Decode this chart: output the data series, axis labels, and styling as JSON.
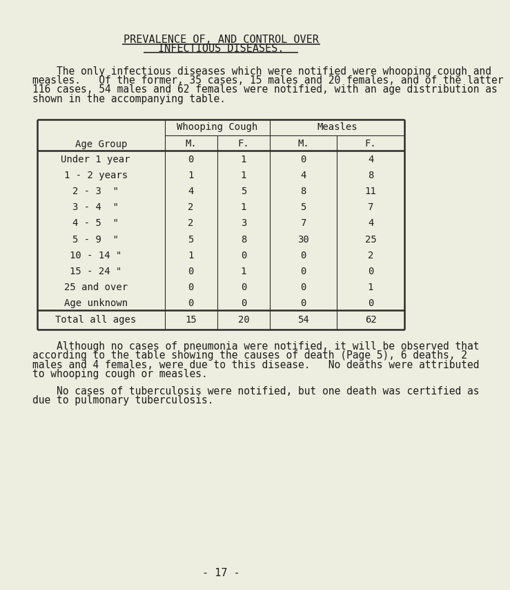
{
  "bg_color": "#eeeee0",
  "title_line1": "PREVALENCE OF, AND CONTROL OVER",
  "title_line2": "INFECTIOUS DISEASES.",
  "para1_indent": "    The only infectious diseases which were notified were whooping cough and",
  "para1_lines": [
    "    The only infectious diseases which were notified were whooping cough and",
    "measles.   Of the former, 35 cases, 15 males and 20 females, and of the latter",
    "116 cases, 54 males and 62 females were notified, with an age distribution as",
    "shown in the accompanying table."
  ],
  "table_header_col1": "Age Group",
  "table_header_wc": "Whooping Cough",
  "table_header_measles": "Measles",
  "table_subheader": [
    "M.",
    "F.",
    "M.",
    "F."
  ],
  "age_groups": [
    "Under 1 year",
    "1 - 2 years",
    "2 - 3  \"",
    "3 - 4  \"",
    "4 - 5  \"",
    "5 - 9  \"",
    "10 - 14 \"",
    "15 - 24 \"",
    "25 and over",
    "Age unknown"
  ],
  "data": [
    [
      0,
      1,
      0,
      4
    ],
    [
      1,
      1,
      4,
      8
    ],
    [
      4,
      5,
      8,
      11
    ],
    [
      2,
      1,
      5,
      7
    ],
    [
      2,
      3,
      7,
      4
    ],
    [
      5,
      8,
      30,
      25
    ],
    [
      1,
      0,
      0,
      2
    ],
    [
      0,
      1,
      0,
      0
    ],
    [
      0,
      0,
      0,
      1
    ],
    [
      0,
      0,
      0,
      0
    ]
  ],
  "totals": [
    15,
    20,
    54,
    62
  ],
  "para2_lines": [
    "    Although no cases of pneumonia were notified, it will be observed that",
    "according to the table showing the causes of death (Page 5), 6 deaths, 2",
    "males and 4 females, were due to this disease.   No deaths were attributed",
    "to whooping cough or measles."
  ],
  "para3_lines": [
    "    No cases of tuberculosis were notified, but one death was certified as",
    "due to pulmonary tuberculosis."
  ],
  "page_number": "- 17 -",
  "text_color": "#1c1c1c",
  "line_color": "#2a2a2a"
}
